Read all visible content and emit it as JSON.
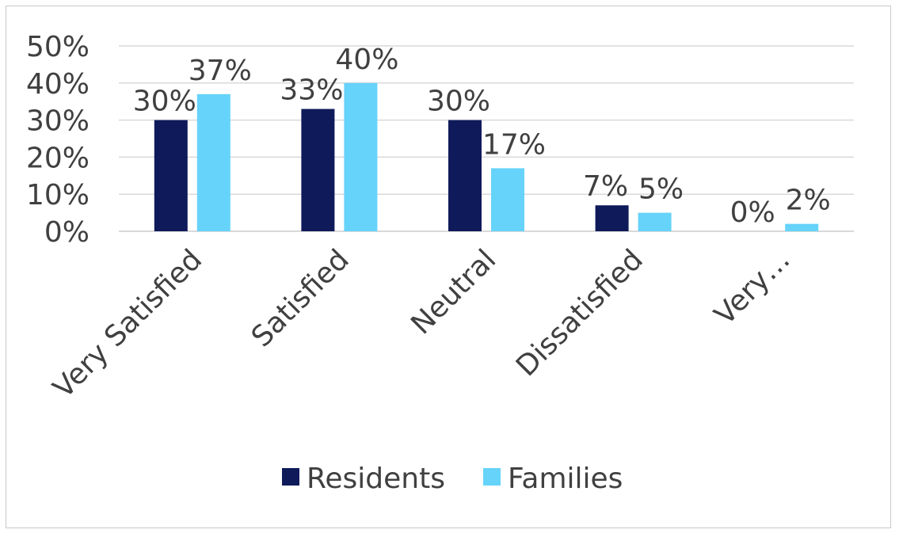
{
  "chart_data": {
    "type": "bar",
    "title": "",
    "xlabel": "",
    "ylabel": "",
    "categories": [
      "Very Satisfied",
      "Satisfied",
      "Neutral",
      "Dissatisfied",
      "Very…"
    ],
    "series": [
      {
        "name": "Residents",
        "color": "#0f1a5a",
        "values": [
          30,
          33,
          30,
          7,
          0
        ],
        "labels": [
          "30%",
          "33%",
          "30%",
          "7%",
          "0%"
        ]
      },
      {
        "name": "Families",
        "color": "#66d3fa",
        "values": [
          37,
          40,
          17,
          5,
          2
        ],
        "labels": [
          "37%",
          "40%",
          "17%",
          "5%",
          "2%"
        ]
      }
    ],
    "ylim": [
      0,
      50
    ],
    "yticks": [
      "0%",
      "10%",
      "20%",
      "30%",
      "40%",
      "50%"
    ],
    "grid": true,
    "legend_position": "bottom"
  }
}
